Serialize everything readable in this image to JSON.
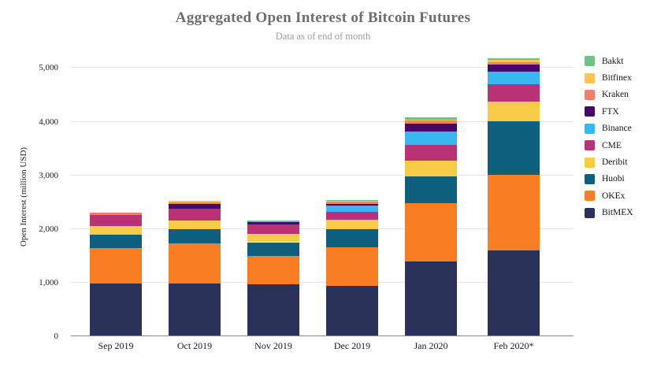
{
  "chart_data": {
    "type": "bar",
    "stacked": true,
    "title": "Aggregated Open Interest of Bitcoin Futures",
    "subtitle": "Data as of end of month",
    "ylabel": "Open Interest (million USD)",
    "categories": [
      "Sep 2019",
      "Oct 2019",
      "Nov 2019",
      "Dec 2019",
      "Jan 2020",
      "Feb 2020*"
    ],
    "ylim": [
      0,
      5000
    ],
    "ytick_interval": 1000,
    "yticks": [
      "0",
      "1,000",
      "2,000",
      "3,000",
      "4,000",
      "5,000"
    ],
    "grid": true,
    "legend_position": "right",
    "series": [
      {
        "name": "BitMEX",
        "color": "#2a325a",
        "values": [
          965,
          975,
          950,
          930,
          1380,
          1580
        ]
      },
      {
        "name": "OKEx",
        "color": "#f97d23",
        "values": [
          660,
          750,
          540,
          720,
          1090,
          1415
        ]
      },
      {
        "name": "Huobi",
        "color": "#0e5e7e",
        "values": [
          255,
          255,
          250,
          335,
          500,
          995
        ]
      },
      {
        "name": "Deribit",
        "color": "#f7cb45",
        "values": [
          155,
          165,
          160,
          175,
          295,
          375
        ]
      },
      {
        "name": "CME",
        "color": "#b93273",
        "values": [
          205,
          225,
          175,
          145,
          295,
          315
        ]
      },
      {
        "name": "Binance",
        "color": "#38b8f1",
        "values": [
          0,
          0,
          0,
          115,
          245,
          245
        ]
      },
      {
        "name": "FTX",
        "color": "#440a68",
        "values": [
          0,
          75,
          45,
          30,
          145,
          130
        ]
      },
      {
        "name": "Kraken",
        "color": "#f47d70",
        "values": [
          50,
          30,
          15,
          40,
          55,
          45
        ]
      },
      {
        "name": "Bitfinex",
        "color": "#f9c455",
        "values": [
          0,
          30,
          0,
          15,
          20,
          45
        ]
      },
      {
        "name": "Bakkt",
        "color": "#70c186",
        "values": [
          0,
          0,
          15,
          10,
          40,
          30
        ]
      }
    ]
  }
}
